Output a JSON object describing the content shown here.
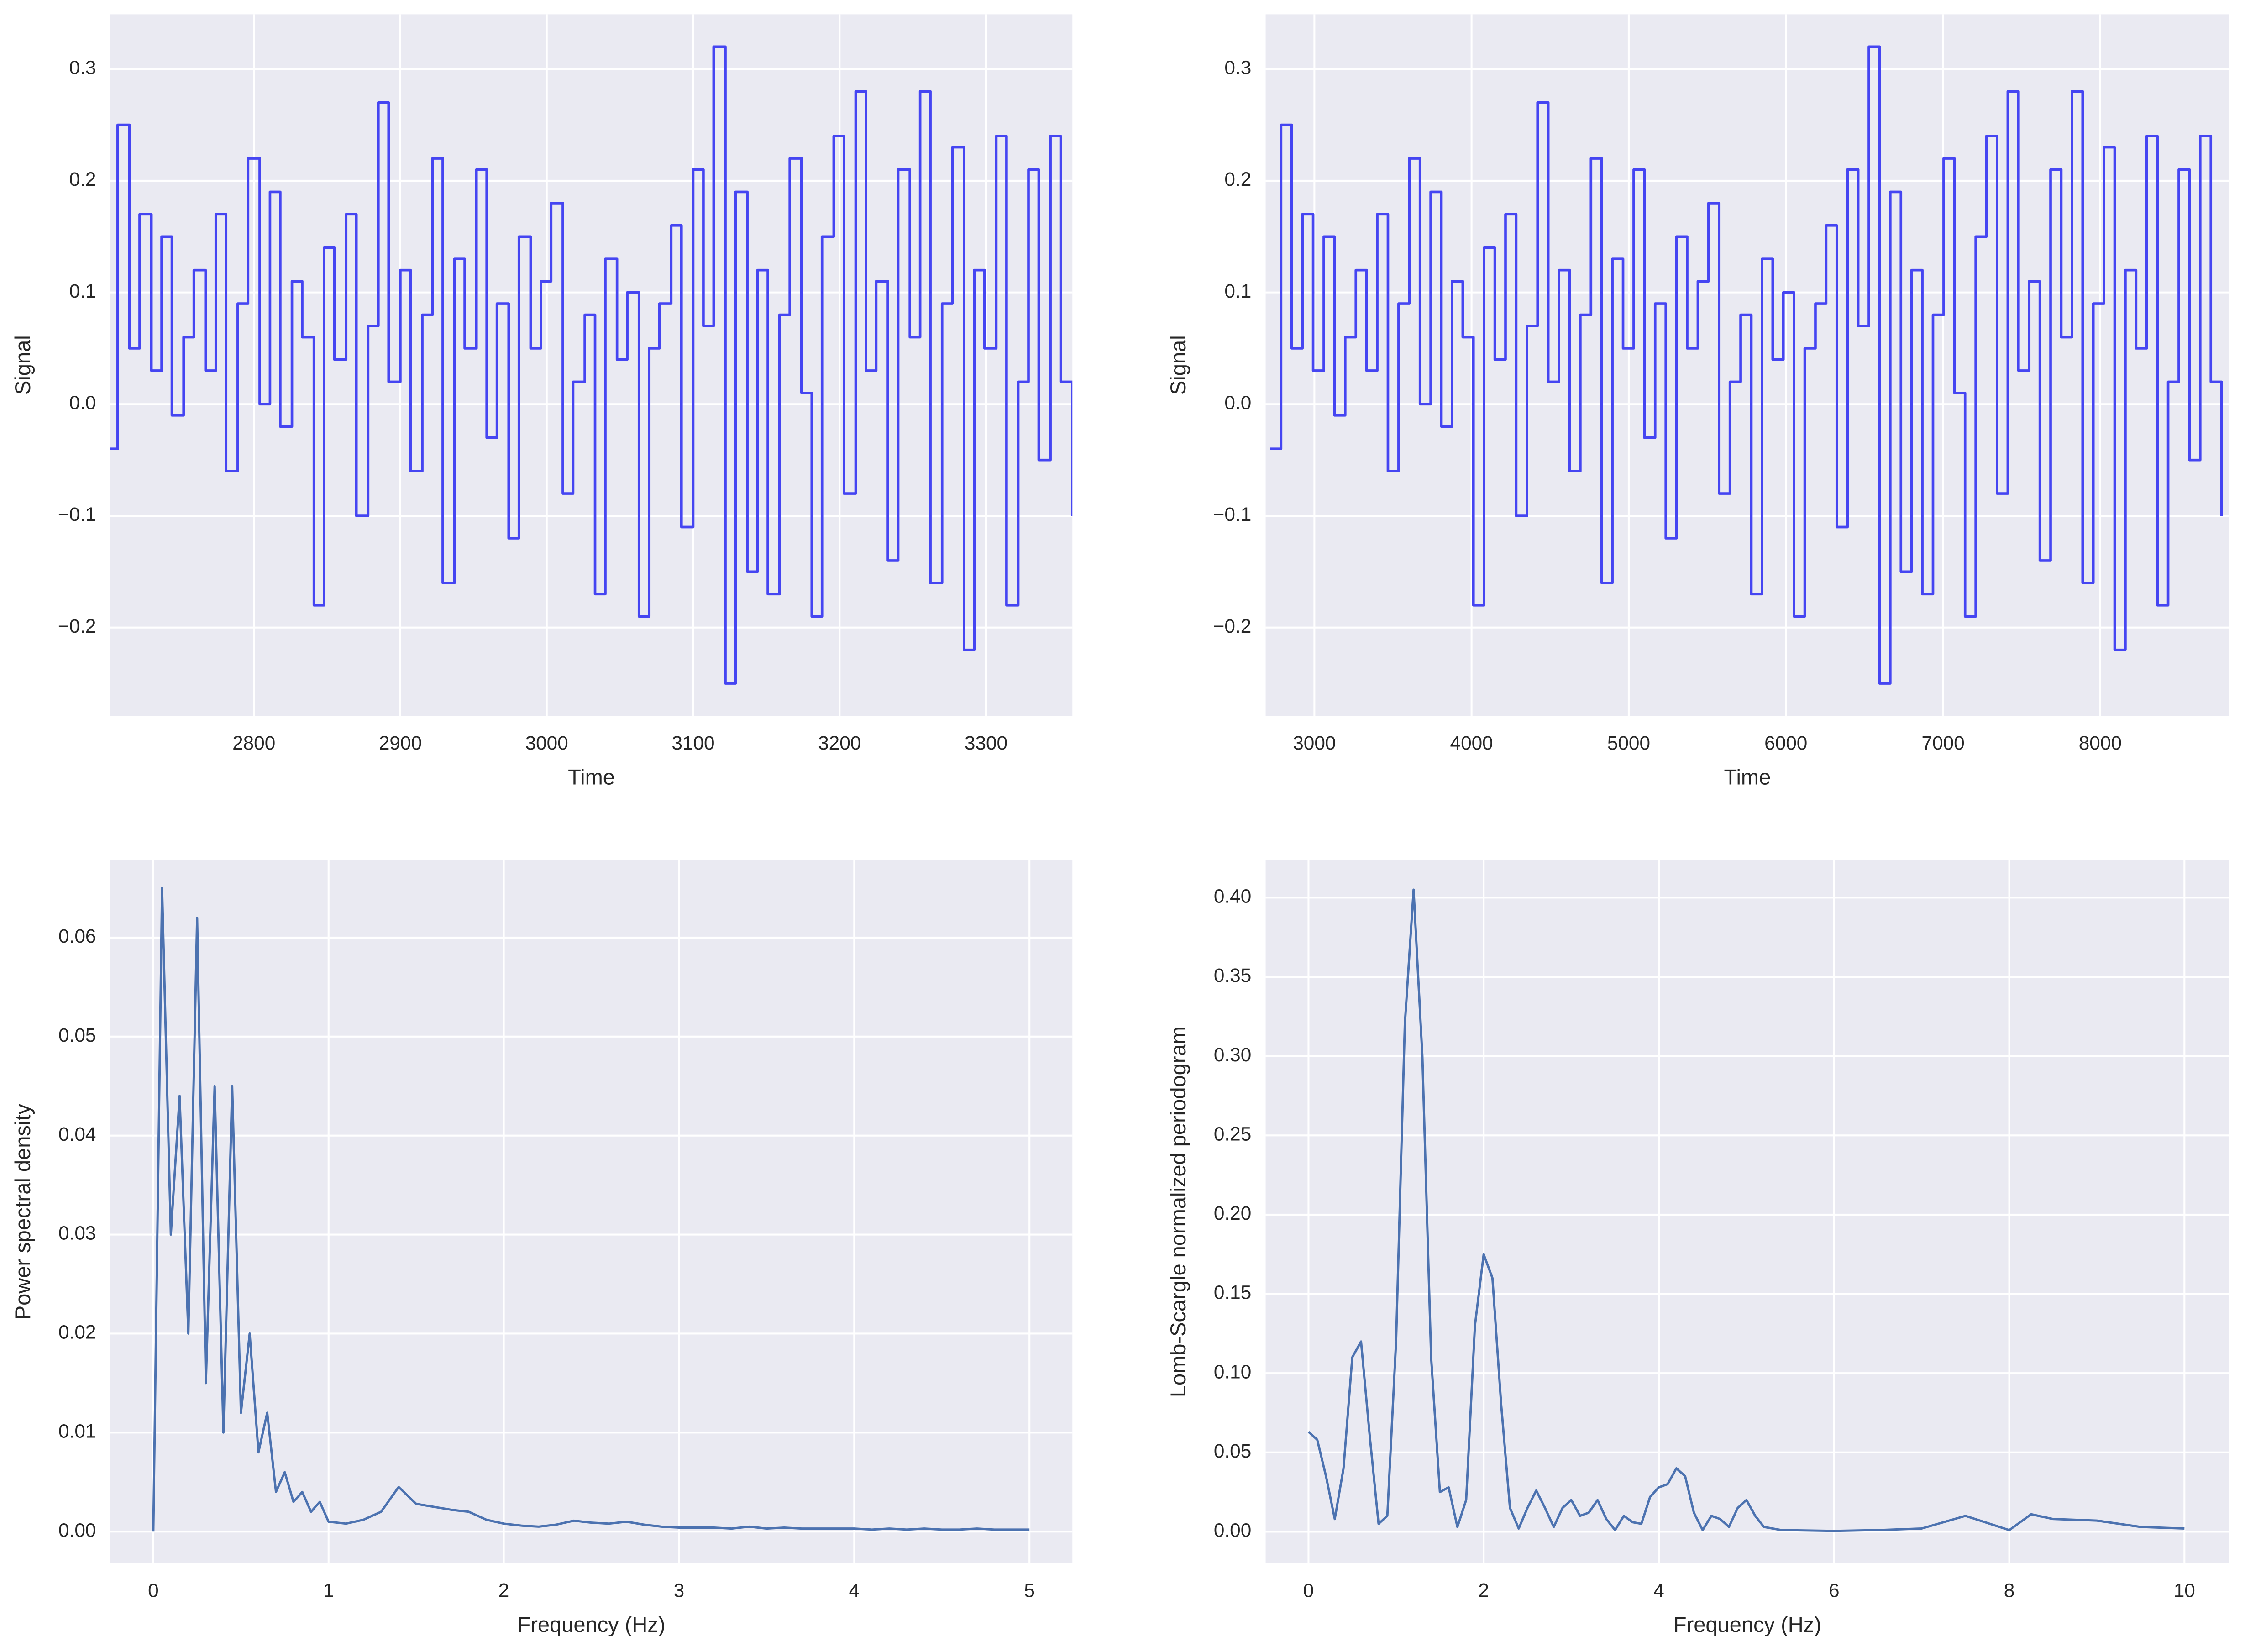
{
  "chart_data": [
    {
      "type": "line",
      "step": true,
      "xlabel": "Time",
      "ylabel": "Signal",
      "color": "#4545f2",
      "grid": true,
      "x": [
        2700,
        2707,
        2715,
        2722,
        2730,
        2737,
        2744,
        2752,
        2759,
        2767,
        2774,
        2781,
        2789,
        2796,
        2804,
        2811,
        2818,
        2826,
        2833,
        2841,
        2848,
        2855,
        2863,
        2870,
        2878,
        2885,
        2892,
        2900,
        2907,
        2915,
        2922,
        2929,
        2937,
        2944,
        2952,
        2959,
        2966,
        2974,
        2981,
        2989,
        2996,
        3003,
        3011,
        3018,
        3026,
        3033,
        3040,
        3048,
        3055,
        3063,
        3070,
        3077,
        3085,
        3092,
        3100,
        3107,
        3114,
        3122,
        3129,
        3137,
        3144,
        3151,
        3159,
        3166,
        3174,
        3181,
        3188,
        3196,
        3203,
        3211,
        3218,
        3225,
        3233,
        3240,
        3248,
        3255,
        3262,
        3270,
        3277,
        3285,
        3292,
        3299,
        3307,
        3314,
        3322,
        3329,
        3336,
        3344,
        3351,
        3359
      ],
      "values": [
        -0.04,
        0.25,
        0.05,
        0.17,
        0.03,
        0.15,
        -0.01,
        0.06,
        0.12,
        0.03,
        0.17,
        -0.06,
        0.09,
        0.22,
        0.0,
        0.19,
        -0.02,
        0.11,
        0.06,
        -0.18,
        0.14,
        0.04,
        0.17,
        -0.1,
        0.07,
        0.27,
        0.02,
        0.12,
        -0.06,
        0.08,
        0.22,
        -0.16,
        0.13,
        0.05,
        0.21,
        -0.03,
        0.09,
        -0.12,
        0.15,
        0.05,
        0.11,
        0.18,
        -0.08,
        0.02,
        0.08,
        -0.17,
        0.13,
        0.04,
        0.1,
        -0.19,
        0.05,
        0.09,
        0.16,
        -0.11,
        0.21,
        0.07,
        0.32,
        -0.25,
        0.19,
        -0.15,
        0.12,
        -0.17,
        0.08,
        0.22,
        0.01,
        -0.19,
        0.15,
        0.24,
        -0.08,
        0.28,
        0.03,
        0.11,
        -0.14,
        0.21,
        0.06,
        0.28,
        -0.16,
        0.09,
        0.23,
        -0.22,
        0.12,
        0.05,
        0.24,
        -0.18,
        0.02,
        0.21,
        -0.05,
        0.24,
        0.02,
        -0.1
      ],
      "xlim": [
        2702,
        3359
      ],
      "ylim": [
        -0.279,
        0.349
      ],
      "xticks": [
        2800,
        2900,
        3000,
        3100,
        3200,
        3300
      ],
      "yticks": [
        {
          "value": -0.2,
          "label": "−0.2"
        },
        {
          "value": -0.1,
          "label": "−0.1"
        },
        {
          "value": 0,
          "label": "0.0"
        },
        0.1,
        0.2,
        0.3
      ]
    },
    {
      "type": "line",
      "step": true,
      "xlabel": "Time",
      "ylabel": "Signal",
      "color": "#4545f2",
      "grid": true,
      "x": [
        2720,
        2788,
        2856,
        2924,
        2992,
        3060,
        3128,
        3196,
        3264,
        3332,
        3400,
        3468,
        3536,
        3604,
        3672,
        3740,
        3808,
        3876,
        3944,
        4012,
        4080,
        4148,
        4216,
        4284,
        4352,
        4420,
        4488,
        4556,
        4624,
        4692,
        4760,
        4828,
        4896,
        4964,
        5032,
        5100,
        5168,
        5236,
        5304,
        5372,
        5440,
        5508,
        5576,
        5644,
        5712,
        5780,
        5848,
        5916,
        5984,
        6052,
        6120,
        6188,
        6256,
        6324,
        6392,
        6460,
        6528,
        6596,
        6664,
        6732,
        6800,
        6868,
        6936,
        7004,
        7072,
        7140,
        7208,
        7276,
        7344,
        7412,
        7480,
        7548,
        7616,
        7684,
        7752,
        7820,
        7888,
        7956,
        8024,
        8092,
        8160,
        8228,
        8296,
        8364,
        8432,
        8500,
        8568,
        8636,
        8704,
        8772
      ],
      "values": [
        -0.04,
        0.25,
        0.05,
        0.17,
        0.03,
        0.15,
        -0.01,
        0.06,
        0.12,
        0.03,
        0.17,
        -0.06,
        0.09,
        0.22,
        0.0,
        0.19,
        -0.02,
        0.11,
        0.06,
        -0.18,
        0.14,
        0.04,
        0.17,
        -0.1,
        0.07,
        0.27,
        0.02,
        0.12,
        -0.06,
        0.08,
        0.22,
        -0.16,
        0.13,
        0.05,
        0.21,
        -0.03,
        0.09,
        -0.12,
        0.15,
        0.05,
        0.11,
        0.18,
        -0.08,
        0.02,
        0.08,
        -0.17,
        0.13,
        0.04,
        0.1,
        -0.19,
        0.05,
        0.09,
        0.16,
        -0.11,
        0.21,
        0.07,
        0.32,
        -0.25,
        0.19,
        -0.15,
        0.12,
        -0.17,
        0.08,
        0.22,
        0.01,
        -0.19,
        0.15,
        0.24,
        -0.08,
        0.28,
        0.03,
        0.11,
        -0.14,
        0.21,
        0.06,
        0.28,
        -0.16,
        0.09,
        0.23,
        -0.22,
        0.12,
        0.05,
        0.24,
        -0.18,
        0.02,
        0.21,
        -0.05,
        0.24,
        0.02,
        -0.1
      ],
      "xlim": [
        2690,
        8820
      ],
      "ylim": [
        -0.279,
        0.349
      ],
      "xticks": [
        3000,
        4000,
        5000,
        6000,
        7000,
        8000
      ],
      "yticks": [
        {
          "value": -0.2,
          "label": "−0.2"
        },
        {
          "value": -0.1,
          "label": "−0.1"
        },
        {
          "value": 0,
          "label": "0.0"
        },
        0.1,
        0.2,
        0.3
      ]
    },
    {
      "type": "line",
      "step": false,
      "xlabel": "Frequency (Hz)",
      "ylabel": "Power spectral density",
      "color": "#4c72b0",
      "grid": true,
      "x": [
        0,
        0.05,
        0.1,
        0.15,
        0.2,
        0.25,
        0.3,
        0.35,
        0.4,
        0.45,
        0.5,
        0.55,
        0.6,
        0.65,
        0.7,
        0.75,
        0.8,
        0.85,
        0.9,
        0.95,
        1.0,
        1.1,
        1.2,
        1.3,
        1.4,
        1.5,
        1.6,
        1.7,
        1.8,
        1.9,
        2.0,
        2.1,
        2.2,
        2.3,
        2.4,
        2.5,
        2.6,
        2.7,
        2.8,
        2.9,
        3.0,
        3.1,
        3.2,
        3.3,
        3.4,
        3.5,
        3.6,
        3.7,
        3.8,
        3.9,
        4.0,
        4.1,
        4.2,
        4.3,
        4.4,
        4.5,
        4.6,
        4.7,
        4.8,
        4.9,
        5.0
      ],
      "values": [
        0.0,
        0.065,
        0.03,
        0.044,
        0.02,
        0.062,
        0.015,
        0.045,
        0.01,
        0.045,
        0.012,
        0.02,
        0.008,
        0.012,
        0.004,
        0.006,
        0.003,
        0.004,
        0.002,
        0.003,
        0.001,
        0.0008,
        0.0012,
        0.002,
        0.0045,
        0.0028,
        0.0025,
        0.0022,
        0.002,
        0.0012,
        0.0008,
        0.0006,
        0.0005,
        0.0007,
        0.0011,
        0.0009,
        0.0008,
        0.001,
        0.0007,
        0.0005,
        0.0004,
        0.0004,
        0.0004,
        0.0003,
        0.0005,
        0.0003,
        0.0004,
        0.0003,
        0.0003,
        0.0003,
        0.0003,
        0.0002,
        0.0003,
        0.0002,
        0.0003,
        0.0002,
        0.0002,
        0.0003,
        0.0002,
        0.0002,
        0.0002
      ],
      "xlim": [
        -0.245,
        5.245
      ],
      "ylim": [
        -0.0032,
        0.0678
      ],
      "xticks": [
        0,
        1,
        2,
        3,
        4,
        5
      ],
      "yticks": [
        {
          "value": 0,
          "label": "0.00"
        },
        {
          "value": 0.01,
          "label": "0.01"
        },
        {
          "value": 0.02,
          "label": "0.02"
        },
        {
          "value": 0.03,
          "label": "0.03"
        },
        {
          "value": 0.04,
          "label": "0.04"
        },
        {
          "value": 0.05,
          "label": "0.05"
        },
        {
          "value": 0.06,
          "label": "0.06"
        }
      ]
    },
    {
      "type": "line",
      "step": false,
      "xlabel": "Frequency (Hz)",
      "ylabel": "Lomb-Scargle normalized periodogram",
      "color": "#4c72b0",
      "grid": true,
      "x": [
        0,
        0.1,
        0.2,
        0.3,
        0.4,
        0.5,
        0.6,
        0.7,
        0.8,
        0.9,
        1.0,
        1.1,
        1.2,
        1.3,
        1.4,
        1.5,
        1.6,
        1.7,
        1.8,
        1.9,
        2.0,
        2.1,
        2.2,
        2.3,
        2.4,
        2.5,
        2.6,
        2.7,
        2.8,
        2.9,
        3.0,
        3.1,
        3.2,
        3.3,
        3.4,
        3.5,
        3.6,
        3.7,
        3.8,
        3.9,
        4.0,
        4.1,
        4.2,
        4.3,
        4.4,
        4.5,
        4.6,
        4.7,
        4.8,
        4.9,
        5.0,
        5.1,
        5.2,
        5.3,
        5.4,
        6.0,
        6.5,
        7.0,
        7.5,
        8.0,
        8.25,
        8.5,
        9.0,
        9.5,
        10.0
      ],
      "values": [
        0.063,
        0.058,
        0.035,
        0.008,
        0.04,
        0.11,
        0.12,
        0.06,
        0.005,
        0.01,
        0.12,
        0.32,
        0.405,
        0.3,
        0.11,
        0.025,
        0.028,
        0.003,
        0.02,
        0.13,
        0.175,
        0.16,
        0.08,
        0.015,
        0.002,
        0.015,
        0.026,
        0.015,
        0.003,
        0.015,
        0.02,
        0.01,
        0.012,
        0.02,
        0.008,
        0.001,
        0.01,
        0.006,
        0.005,
        0.022,
        0.028,
        0.03,
        0.04,
        0.035,
        0.012,
        0.001,
        0.01,
        0.008,
        0.003,
        0.015,
        0.02,
        0.01,
        0.003,
        0.002,
        0.001,
        0.0005,
        0.001,
        0.002,
        0.01,
        0.001,
        0.011,
        0.008,
        0.007,
        0.003,
        0.002
      ],
      "xlim": [
        -0.489,
        10.51
      ],
      "ylim": [
        -0.0199,
        0.4235
      ],
      "xticks": [
        0,
        2,
        4,
        6,
        8,
        10
      ],
      "yticks": [
        {
          "value": 0,
          "label": "0.00"
        },
        {
          "value": 0.05,
          "label": "0.05"
        },
        {
          "value": 0.1,
          "label": "0.10"
        },
        {
          "value": 0.15,
          "label": "0.15"
        },
        {
          "value": 0.2,
          "label": "0.20"
        },
        {
          "value": 0.25,
          "label": "0.25"
        },
        {
          "value": 0.3,
          "label": "0.30"
        },
        {
          "value": 0.35,
          "label": "0.35"
        },
        {
          "value": 0.4,
          "label": "0.40"
        }
      ]
    }
  ]
}
